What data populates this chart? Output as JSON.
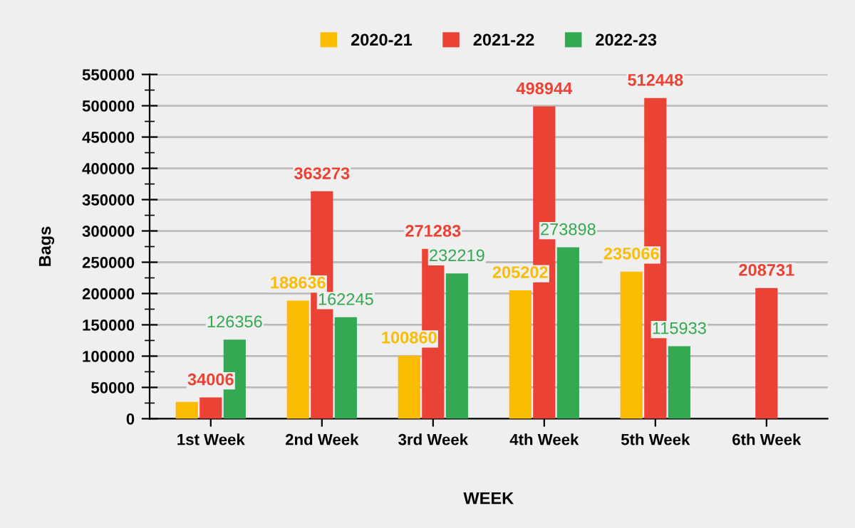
{
  "chart_data": {
    "type": "bar",
    "xlabel": "WEEK",
    "ylabel": "Bags",
    "categories": [
      "1st Week",
      "2nd Week",
      "3rd Week",
      "4th Week",
      "5th Week",
      "6th Week"
    ],
    "series": [
      {
        "name": "2020-21",
        "color": "#fbbc04",
        "values": [
          27000,
          188636,
          100860,
          205202,
          235066,
          null
        ],
        "value_labels": [
          null,
          "188636",
          "100860",
          "205202",
          "235066",
          null
        ]
      },
      {
        "name": "2021-22",
        "color": "#ea4335",
        "values": [
          34006,
          363273,
          271283,
          498944,
          512448,
          208731
        ],
        "value_labels": [
          "34006",
          "363273",
          "271283",
          "498944",
          "512448",
          "208731"
        ]
      },
      {
        "name": "2022-23",
        "color": "#34a853",
        "values": [
          126356,
          162245,
          232219,
          273898,
          115933,
          null
        ],
        "value_labels": [
          "126356",
          "162245",
          "232219",
          "273898",
          "115933",
          null
        ]
      }
    ],
    "ylim": [
      0,
      550000
    ],
    "yticks": [
      0,
      50000,
      100000,
      150000,
      200000,
      250000,
      300000,
      350000,
      400000,
      450000,
      500000,
      550000
    ],
    "grid": "y",
    "legend": "top"
  }
}
